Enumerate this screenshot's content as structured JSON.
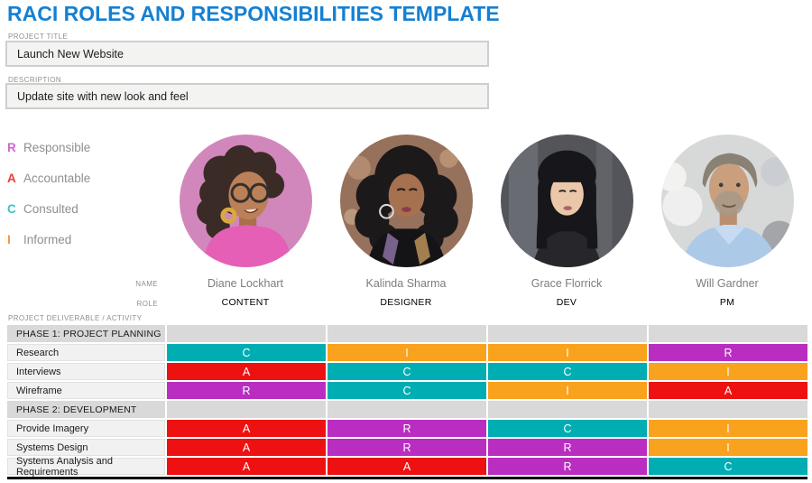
{
  "title": "RACI ROLES AND RESPONSIBILITIES TEMPLATE",
  "fields": {
    "project_title_label": "PROJECT TITLE",
    "project_title_value": "Launch New Website",
    "description_label": "DESCRIPTION",
    "description_value": "Update site with new look and feel"
  },
  "legend": {
    "items": [
      {
        "letter": "R",
        "label": "Responsible",
        "color": "#CF63D4"
      },
      {
        "letter": "A",
        "label": "Accountable",
        "color": "#F2392C"
      },
      {
        "letter": "C",
        "label": "Consulted",
        "color": "#3FBFC7"
      },
      {
        "letter": "I",
        "label": "Informed",
        "color": "#F5923F"
      }
    ]
  },
  "team": {
    "name_label": "NAME",
    "role_label": "ROLE",
    "members": [
      {
        "name": "Diane Lockhart",
        "role": "CONTENT"
      },
      {
        "name": "Kalinda Sharma",
        "role": "DESIGNER"
      },
      {
        "name": "Grace Florrick",
        "role": "DEV"
      },
      {
        "name": "Will Gardner",
        "role": "PM"
      }
    ]
  },
  "matrix": {
    "header_label": "PROJECT DELIVERABLE / ACTIVITY",
    "cell_colors": {
      "R": "#B92EC1",
      "A": "#EE1111",
      "C": "#00ADB2",
      "I": "#F9A21E"
    },
    "sections": [
      {
        "phase": "PHASE 1: PROJECT PLANNING",
        "rows": [
          {
            "activity": "Research",
            "cells": [
              "C",
              "I",
              "I",
              "R"
            ]
          },
          {
            "activity": "Interviews",
            "cells": [
              "A",
              "C",
              "C",
              "I"
            ]
          },
          {
            "activity": "Wireframe",
            "cells": [
              "R",
              "C",
              "I",
              "A"
            ]
          }
        ]
      },
      {
        "phase": "PHASE 2: DEVELOPMENT",
        "rows": [
          {
            "activity": "Provide Imagery",
            "cells": [
              "A",
              "R",
              "C",
              "I"
            ]
          },
          {
            "activity": "Systems Design",
            "cells": [
              "A",
              "R",
              "R",
              "I"
            ]
          },
          {
            "activity": "Systems Analysis and Requirements",
            "cells": [
              "A",
              "A",
              "R",
              "C"
            ]
          }
        ]
      }
    ]
  }
}
